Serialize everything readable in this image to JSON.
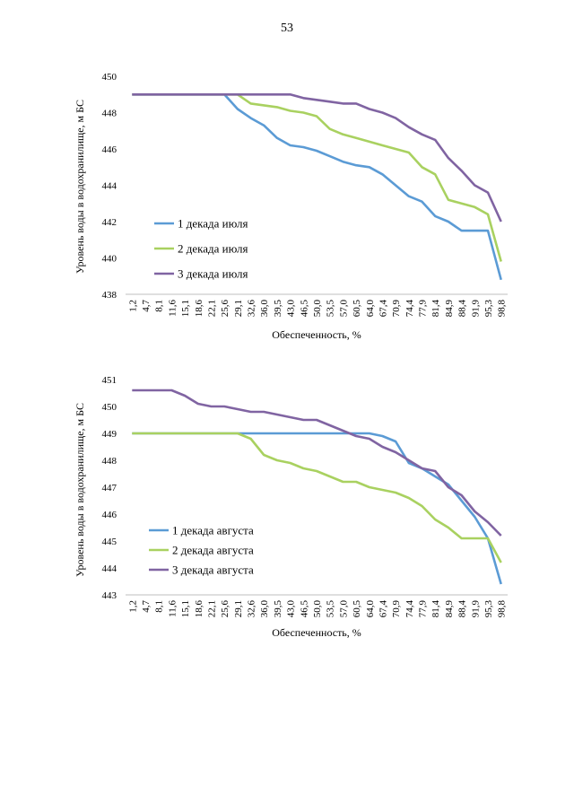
{
  "page": {
    "number": "53"
  },
  "chart_data": [
    {
      "type": "line",
      "title": "",
      "xlabel": "Обеспеченность, %",
      "ylabel": "Уровень воды в водохранилище, м БС",
      "ylim": [
        438,
        450
      ],
      "yticks": [
        "438",
        "440",
        "442",
        "444",
        "446",
        "448",
        "450"
      ],
      "categories": [
        "1,2",
        "4,7",
        "8,1",
        "11,6",
        "15,1",
        "18,6",
        "22,1",
        "25,6",
        "29,1",
        "32,6",
        "36,0",
        "39,5",
        "43,0",
        "46,5",
        "50,0",
        "53,5",
        "57,0",
        "60,5",
        "64,0",
        "67,4",
        "70,9",
        "74,4",
        "77,9",
        "81,4",
        "84,9",
        "88,4",
        "91,9",
        "95,3",
        "98,8"
      ],
      "legend_position": "left",
      "grid": false,
      "series": [
        {
          "name": "1 декада июля",
          "color": "#5b9bd5",
          "values": [
            449.0,
            449.0,
            449.0,
            449.0,
            449.0,
            449.0,
            449.0,
            449.0,
            448.2,
            447.7,
            447.3,
            446.6,
            446.2,
            446.1,
            445.9,
            445.6,
            445.3,
            445.1,
            445.0,
            444.6,
            444.0,
            443.4,
            443.1,
            442.3,
            442.0,
            441.5,
            441.5,
            441.5,
            438.8
          ]
        },
        {
          "name": "2 декада июля",
          "color": "#a9d160",
          "values": [
            449.0,
            449.0,
            449.0,
            449.0,
            449.0,
            449.0,
            449.0,
            449.0,
            449.0,
            448.5,
            448.4,
            448.3,
            448.1,
            448.0,
            447.8,
            447.1,
            446.8,
            446.6,
            446.4,
            446.2,
            446.0,
            445.8,
            445.0,
            444.6,
            443.2,
            443.0,
            442.8,
            442.4,
            439.8
          ]
        },
        {
          "name": "3 декада июля",
          "color": "#8064a2",
          "values": [
            449.0,
            449.0,
            449.0,
            449.0,
            449.0,
            449.0,
            449.0,
            449.0,
            449.0,
            449.0,
            449.0,
            449.0,
            449.0,
            448.8,
            448.7,
            448.6,
            448.5,
            448.5,
            448.2,
            448.0,
            447.7,
            447.2,
            446.8,
            446.5,
            445.5,
            444.8,
            444.0,
            443.6,
            442.0
          ]
        }
      ]
    },
    {
      "type": "line",
      "title": "",
      "xlabel": "Обеспеченность, %",
      "ylabel": "Уровень воды в водохранилище, м БС",
      "ylim": [
        443,
        451
      ],
      "yticks": [
        "443",
        "444",
        "445",
        "446",
        "447",
        "448",
        "449",
        "450",
        "451"
      ],
      "categories": [
        "1,2",
        "4,7",
        "8,1",
        "11,6",
        "15,1",
        "18,6",
        "22,1",
        "25,6",
        "29,1",
        "32,6",
        "36,0",
        "39,5",
        "43,0",
        "46,5",
        "50,0",
        "53,5",
        "57,0",
        "60,5",
        "64,0",
        "67,4",
        "70,9",
        "74,4",
        "77,9",
        "81,4",
        "84,9",
        "88,4",
        "91,9",
        "95,3",
        "98,8"
      ],
      "legend_position": "left",
      "grid": false,
      "series": [
        {
          "name": "1 декада августа",
          "color": "#5b9bd5",
          "values": [
            449.0,
            449.0,
            449.0,
            449.0,
            449.0,
            449.0,
            449.0,
            449.0,
            449.0,
            449.0,
            449.0,
            449.0,
            449.0,
            449.0,
            449.0,
            449.0,
            449.0,
            449.0,
            449.0,
            448.9,
            448.7,
            447.9,
            447.7,
            447.4,
            447.1,
            446.5,
            445.9,
            445.1,
            443.4
          ]
        },
        {
          "name": "2 декада августа",
          "color": "#a9d160",
          "values": [
            449.0,
            449.0,
            449.0,
            449.0,
            449.0,
            449.0,
            449.0,
            449.0,
            449.0,
            448.8,
            448.2,
            448.0,
            447.9,
            447.7,
            447.6,
            447.4,
            447.2,
            447.2,
            447.0,
            446.9,
            446.8,
            446.6,
            446.3,
            445.8,
            445.5,
            445.1,
            445.1,
            445.1,
            444.2
          ]
        },
        {
          "name": "3 декада августа",
          "color": "#8064a2",
          "values": [
            450.6,
            450.6,
            450.6,
            450.6,
            450.4,
            450.1,
            450.0,
            450.0,
            449.9,
            449.8,
            449.8,
            449.7,
            449.6,
            449.5,
            449.5,
            449.3,
            449.1,
            448.9,
            448.8,
            448.5,
            448.3,
            448.0,
            447.7,
            447.6,
            447.0,
            446.7,
            446.1,
            445.7,
            445.2
          ]
        }
      ]
    }
  ]
}
